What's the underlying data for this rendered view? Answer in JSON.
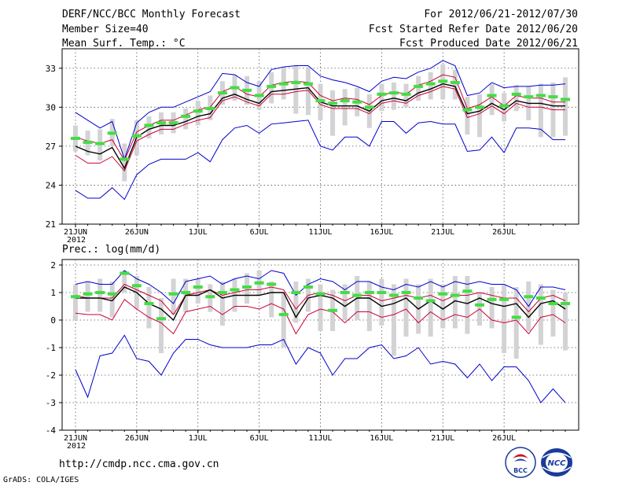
{
  "header": {
    "title": "DERF/NCC/BCC Monthly Forecast",
    "member_size": "Member Size=40",
    "var1_label": "Mean Surf. Temp.: °C",
    "period": "For 2012/06/21-2012/07/30",
    "start_date": "Fcst Started Refer Date 2012/06/20",
    "produced_date": "Fcst Produced Date 2012/06/21"
  },
  "footer": {
    "url": "http://cmdp.ncc.cma.gov.cn",
    "credit": "GrADS: COLA/IGES",
    "logo_bcc": "BCC",
    "logo_ncc": "NCC"
  },
  "colors": {
    "max_line": "#0000cc",
    "min_line": "#0000cc",
    "upper_line": "#cc0033",
    "lower_line": "#cc0033",
    "mean_line": "#000000",
    "green_bar": "#44dd44",
    "spread_bar": "#d3d3d6"
  },
  "chart_data": [
    {
      "type": "line",
      "name": "temperature",
      "ylabel": "Mean Surf. Temp.: °C",
      "ylim": [
        21,
        34.5
      ],
      "yticks": [
        21,
        24,
        27,
        30,
        33
      ],
      "xlim": [
        0,
        40
      ],
      "xticks": [
        {
          "x": 0,
          "label": "21JUN",
          "sub": "2012"
        },
        {
          "x": 5,
          "label": "26JUN"
        },
        {
          "x": 10,
          "label": "1JUL"
        },
        {
          "x": 15,
          "label": "6JUL"
        },
        {
          "x": 20,
          "label": "11JUL"
        },
        {
          "x": 25,
          "label": "16JUL"
        },
        {
          "x": 30,
          "label": "21JUL"
        },
        {
          "x": 35,
          "label": "26JUL"
        }
      ],
      "series": [
        {
          "name": "max",
          "color": "#0000cc",
          "values": [
            29.6,
            29.0,
            28.4,
            28.9,
            26.0,
            28.8,
            29.6,
            30.0,
            30.0,
            30.4,
            30.8,
            31.2,
            32.6,
            32.5,
            31.9,
            31.6,
            32.9,
            33.1,
            33.2,
            33.2,
            32.4,
            32.1,
            31.9,
            31.6,
            31.2,
            32.0,
            32.3,
            32.2,
            32.7,
            33.0,
            33.6,
            33.2,
            30.9,
            31.1,
            31.9,
            31.5,
            31.6,
            31.6,
            31.7,
            31.7,
            31.8
          ]
        },
        {
          "name": "upper",
          "color": "#cc0033",
          "values": [
            27.7,
            27.4,
            27.2,
            27.5,
            25.9,
            28.1,
            28.6,
            29.0,
            29.0,
            29.4,
            29.8,
            30.0,
            31.2,
            31.6,
            31.0,
            30.8,
            31.7,
            31.9,
            32.0,
            31.9,
            30.9,
            30.5,
            30.7,
            30.6,
            30.2,
            30.9,
            31.2,
            31.0,
            31.7,
            32.0,
            32.5,
            32.3,
            29.9,
            30.2,
            30.8,
            30.1,
            30.9,
            30.7,
            30.7,
            30.4,
            30.4
          ]
        },
        {
          "name": "mean",
          "color": "#000000",
          "values": [
            27.0,
            26.6,
            26.4,
            26.9,
            25.3,
            27.7,
            28.3,
            28.6,
            28.6,
            28.9,
            29.3,
            29.5,
            30.7,
            31.0,
            30.6,
            30.3,
            31.2,
            31.3,
            31.4,
            31.5,
            30.4,
            30.1,
            30.1,
            30.1,
            29.7,
            30.5,
            30.7,
            30.5,
            31.1,
            31.4,
            31.8,
            31.6,
            29.5,
            29.7,
            30.3,
            29.8,
            30.5,
            30.3,
            30.3,
            30.1,
            30.1
          ]
        },
        {
          "name": "lower",
          "color": "#cc0033",
          "values": [
            26.3,
            25.7,
            25.7,
            26.2,
            25.1,
            27.4,
            27.9,
            28.3,
            28.3,
            28.7,
            29.0,
            29.2,
            30.5,
            30.8,
            30.4,
            30.1,
            31.0,
            31.0,
            31.2,
            31.3,
            30.2,
            29.9,
            29.9,
            29.9,
            29.5,
            30.3,
            30.5,
            30.3,
            30.9,
            31.2,
            31.6,
            31.4,
            29.2,
            29.5,
            30.1,
            29.5,
            30.3,
            30.0,
            30.0,
            29.8,
            29.8
          ]
        },
        {
          "name": "min",
          "color": "#0000cc",
          "values": [
            23.6,
            23.0,
            23.0,
            23.8,
            22.9,
            24.8,
            25.6,
            26.0,
            26.0,
            26.0,
            26.5,
            25.8,
            27.5,
            28.4,
            28.6,
            28.0,
            28.7,
            28.8,
            28.9,
            29.0,
            27.0,
            26.7,
            27.7,
            27.7,
            27.0,
            28.9,
            28.9,
            28.0,
            28.8,
            28.9,
            28.7,
            28.7,
            26.6,
            26.7,
            27.7,
            26.5,
            28.4,
            28.4,
            28.3,
            27.5,
            27.5
          ]
        },
        {
          "name": "green_marks",
          "color": "#44dd44",
          "values": [
            27.6,
            27.3,
            27.2,
            28.0,
            26.0,
            27.8,
            28.6,
            28.8,
            28.8,
            29.3,
            29.7,
            29.9,
            31.1,
            31.5,
            31.3,
            30.9,
            31.6,
            31.8,
            31.9,
            31.8,
            30.5,
            30.3,
            30.5,
            30.4,
            30.0,
            31.0,
            31.1,
            31.0,
            31.6,
            31.8,
            32.0,
            31.9,
            29.8,
            30.0,
            30.9,
            30.1,
            31.0,
            30.8,
            30.9,
            30.8,
            30.6
          ]
        },
        {
          "name": "spread_top",
          "color": "#d3d3d6",
          "values": [
            28.6,
            28.2,
            28.3,
            29.1,
            27.2,
            29.0,
            29.3,
            29.6,
            29.6,
            29.9,
            30.5,
            30.9,
            32.0,
            32.5,
            32.4,
            32.0,
            32.7,
            33.1,
            33.2,
            33.1,
            31.8,
            31.3,
            31.4,
            31.5,
            31.0,
            31.8,
            31.9,
            31.8,
            32.4,
            32.7,
            33.3,
            32.9,
            30.8,
            31.0,
            31.8,
            31.1,
            31.7,
            31.6,
            31.8,
            31.9,
            32.3
          ]
        },
        {
          "name": "spread_bottom",
          "color": "#d3d3d6",
          "values": [
            26.6,
            26.3,
            25.9,
            27.0,
            24.3,
            26.3,
            27.6,
            27.9,
            28.0,
            28.3,
            28.6,
            29.0,
            30.2,
            30.5,
            30.2,
            29.8,
            30.3,
            30.6,
            29.5,
            29.4,
            29.0,
            27.8,
            28.6,
            29.3,
            28.4,
            29.7,
            29.8,
            30.0,
            30.5,
            30.6,
            30.6,
            30.6,
            27.9,
            27.7,
            29.4,
            28.9,
            29.7,
            29.0,
            27.7,
            27.7,
            27.8
          ]
        }
      ]
    },
    {
      "type": "line",
      "name": "precipitation",
      "ylabel": "Prec.: log(mm/d)",
      "ylim": [
        -4,
        2.2
      ],
      "yticks": [
        -4,
        -3,
        -2,
        -1,
        0,
        1,
        2
      ],
      "xlim": [
        0,
        40
      ],
      "xticks": [
        {
          "x": 0,
          "label": "21JUN",
          "sub": "2012"
        },
        {
          "x": 5,
          "label": "26JUN"
        },
        {
          "x": 10,
          "label": "1JUL"
        },
        {
          "x": 15,
          "label": "6JUL"
        },
        {
          "x": 20,
          "label": "11JUL"
        },
        {
          "x": 25,
          "label": "16JUL"
        },
        {
          "x": 30,
          "label": "21JUL"
        },
        {
          "x": 35,
          "label": "26JUL"
        }
      ],
      "series": [
        {
          "name": "max",
          "color": "#0000cc",
          "values": [
            1.3,
            1.4,
            1.3,
            1.3,
            1.8,
            1.5,
            1.3,
            1.0,
            0.6,
            1.4,
            1.5,
            1.6,
            1.3,
            1.5,
            1.6,
            1.5,
            1.8,
            1.7,
            0.9,
            1.3,
            1.5,
            1.4,
            1.1,
            1.4,
            1.4,
            1.2,
            1.1,
            1.3,
            1.2,
            1.4,
            1.2,
            1.4,
            1.3,
            1.4,
            1.3,
            1.3,
            1.1,
            0.5,
            1.2,
            1.2,
            1.1
          ]
        },
        {
          "name": "upper",
          "color": "#cc0033",
          "values": [
            0.9,
            0.8,
            0.8,
            0.8,
            1.3,
            1.1,
            0.9,
            0.7,
            0.2,
            0.9,
            1.0,
            1.1,
            0.9,
            1.0,
            1.1,
            1.1,
            1.2,
            1.1,
            0.4,
            0.9,
            1.0,
            0.9,
            0.7,
            0.9,
            0.9,
            0.7,
            0.8,
            0.9,
            0.8,
            0.9,
            0.7,
            0.9,
            0.9,
            1.0,
            0.9,
            0.8,
            0.8,
            0.3,
            0.8,
            0.9,
            0.7
          ]
        },
        {
          "name": "mean",
          "color": "#000000",
          "values": [
            0.8,
            0.8,
            0.8,
            0.7,
            1.2,
            1.0,
            0.6,
            0.4,
            0.0,
            0.9,
            0.9,
            1.1,
            0.8,
            0.9,
            0.9,
            0.9,
            1.0,
            1.0,
            0.1,
            0.8,
            0.9,
            0.8,
            0.5,
            0.8,
            0.8,
            0.5,
            0.6,
            0.8,
            0.4,
            0.7,
            0.4,
            0.7,
            0.6,
            0.8,
            0.6,
            0.5,
            0.6,
            0.1,
            0.6,
            0.7,
            0.4
          ]
        },
        {
          "name": "lower",
          "color": "#cc0033",
          "values": [
            0.25,
            0.2,
            0.2,
            0.0,
            0.75,
            0.4,
            0.1,
            -0.1,
            -0.5,
            0.3,
            0.4,
            0.5,
            0.2,
            0.5,
            0.5,
            0.4,
            0.6,
            0.4,
            -0.5,
            0.2,
            0.4,
            0.3,
            -0.1,
            0.3,
            0.3,
            0.1,
            0.2,
            0.4,
            -0.1,
            0.3,
            0.0,
            0.2,
            0.1,
            0.4,
            0.0,
            -0.1,
            0.0,
            -0.5,
            0.1,
            0.2,
            -0.1
          ]
        },
        {
          "name": "min",
          "color": "#0000cc",
          "values": [
            -1.8,
            -2.8,
            -1.3,
            -1.2,
            -0.55,
            -1.4,
            -1.5,
            -2.0,
            -1.2,
            -0.7,
            -0.7,
            -0.9,
            -1.0,
            -1.0,
            -1.0,
            -0.9,
            -0.9,
            -0.7,
            -1.6,
            -1.0,
            -1.2,
            -2.0,
            -1.4,
            -1.4,
            -1.0,
            -0.9,
            -1.4,
            -1.3,
            -1.0,
            -1.6,
            -1.5,
            -1.6,
            -2.1,
            -1.6,
            -2.2,
            -1.7,
            -1.7,
            -2.2,
            -3.0,
            -2.5,
            -3.0
          ]
        },
        {
          "name": "green_marks",
          "color": "#44dd44",
          "values": [
            0.85,
            0.95,
            1.0,
            0.95,
            1.7,
            1.25,
            0.6,
            0.05,
            0.95,
            1.0,
            1.2,
            0.85,
            1.0,
            1.1,
            1.2,
            1.35,
            1.3,
            0.2,
            1.0,
            1.2,
            0.95,
            0.35,
            1.0,
            0.9,
            1.0,
            1.0,
            0.9,
            1.0,
            0.8,
            0.7,
            0.95,
            0.9,
            1.05,
            0.55,
            0.75,
            0.75,
            0.1,
            0.85,
            0.8,
            0.6,
            0.6
          ]
        },
        {
          "name": "spread_top",
          "color": "#d3d3d6",
          "values": [
            1.3,
            1.4,
            1.5,
            1.4,
            1.8,
            1.6,
            1.2,
            0.8,
            1.5,
            1.5,
            1.5,
            1.3,
            1.4,
            1.5,
            1.7,
            1.8,
            1.4,
            1.0,
            1.4,
            1.5,
            1.3,
            1.1,
            1.3,
            1.6,
            1.4,
            1.5,
            1.3,
            1.5,
            1.3,
            1.5,
            1.3,
            1.6,
            1.6,
            1.0,
            1.2,
            1.3,
            1.2,
            1.4,
            1.3,
            1.1,
            1.0
          ]
        },
        {
          "name": "spread_bottom",
          "color": "#d3d3d6",
          "values": [
            0.0,
            0.3,
            0.3,
            0.1,
            1.0,
            0.4,
            -0.3,
            -1.2,
            0.2,
            0.3,
            0.6,
            0.3,
            -0.2,
            0.3,
            0.6,
            0.9,
            0.1,
            -1.0,
            -0.1,
            0.3,
            -0.4,
            -0.4,
            0.0,
            0.0,
            -0.4,
            -0.2,
            -1.3,
            -0.6,
            -0.5,
            -0.6,
            -0.3,
            -0.3,
            -0.5,
            -0.2,
            -0.3,
            -1.2,
            -1.4,
            -0.4,
            -0.9,
            -0.6,
            -1.1
          ]
        }
      ]
    }
  ]
}
